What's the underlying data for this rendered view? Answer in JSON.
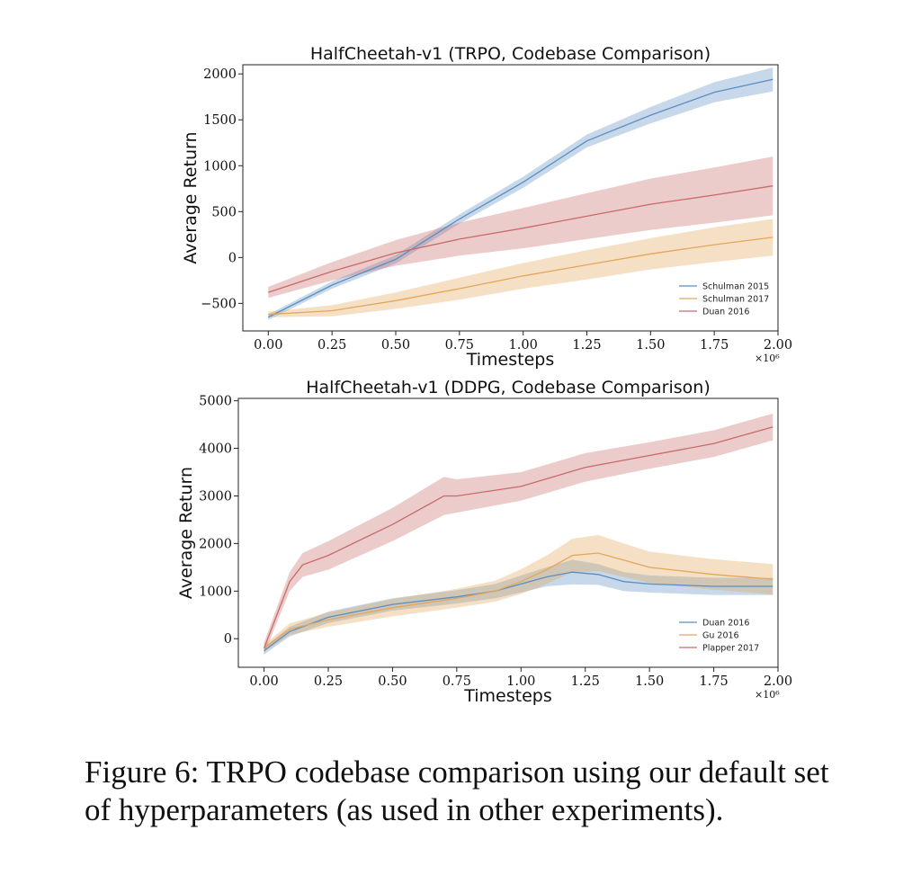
{
  "colors": {
    "blue": "#5b8ec0",
    "orange": "#e3a65a",
    "red": "#c96a6a"
  },
  "caption": {
    "line1": "Figure 6: TRPO codebase comparison using our default set",
    "line2": "of hyperparameters (as used in other experiments)."
  },
  "chart_data": [
    {
      "type": "line",
      "title": "HalfCheetah-v1 (TRPO, Codebase Comparison)",
      "xlabel": "Timesteps",
      "ylabel": "Average Return",
      "x_multiplier": "×10⁶",
      "xlim": [
        -0.1,
        2.0
      ],
      "ylim": [
        -800,
        2100
      ],
      "xticks": [
        "0.00",
        "0.25",
        "0.50",
        "0.75",
        "1.00",
        "1.25",
        "1.50",
        "1.75",
        "2.00"
      ],
      "yticks": [
        "−500",
        "0",
        "500",
        "1000",
        "1500",
        "2000"
      ],
      "legend_position": "lower-right",
      "series": [
        {
          "name": "Schulman 2015",
          "color": "blue",
          "x": [
            0.0,
            0.25,
            0.5,
            0.75,
            1.0,
            1.25,
            1.5,
            1.75,
            1.98
          ],
          "y": [
            -650,
            -300,
            -20,
            420,
            820,
            1270,
            1550,
            1800,
            1940
          ],
          "band": [
            30,
            40,
            45,
            50,
            60,
            70,
            90,
            110,
            130
          ]
        },
        {
          "name": "Schulman 2017",
          "color": "orange",
          "x": [
            0.0,
            0.25,
            0.5,
            0.75,
            1.0,
            1.25,
            1.5,
            1.75,
            1.98
          ],
          "y": [
            -620,
            -580,
            -470,
            -340,
            -200,
            -80,
            40,
            140,
            220
          ],
          "band": [
            30,
            60,
            90,
            120,
            140,
            160,
            170,
            190,
            200
          ]
        },
        {
          "name": "Duan 2016",
          "color": "red",
          "x": [
            0.0,
            0.25,
            0.5,
            0.75,
            1.0,
            1.25,
            1.5,
            1.75,
            1.98
          ],
          "y": [
            -380,
            -150,
            50,
            200,
            320,
            450,
            580,
            680,
            780
          ],
          "band": [
            60,
            100,
            140,
            180,
            220,
            250,
            280,
            300,
            320
          ]
        }
      ]
    },
    {
      "type": "line",
      "title": "HalfCheetah-v1 (DDPG, Codebase Comparison)",
      "xlabel": "Timesteps",
      "ylabel": "Average Return",
      "x_multiplier": "×10⁶",
      "xlim": [
        -0.1,
        2.0
      ],
      "ylim": [
        -600,
        5050
      ],
      "xticks": [
        "0.00",
        "0.25",
        "0.50",
        "0.75",
        "1.00",
        "1.25",
        "1.50",
        "1.75",
        "2.00"
      ],
      "yticks": [
        "0",
        "1000",
        "2000",
        "3000",
        "4000",
        "5000"
      ],
      "legend_position": "lower-right",
      "series": [
        {
          "name": "Duan 2016",
          "color": "blue",
          "x": [
            0.0,
            0.1,
            0.25,
            0.5,
            0.75,
            0.9,
            1.0,
            1.1,
            1.2,
            1.3,
            1.4,
            1.5,
            1.75,
            1.98
          ],
          "y": [
            -250,
            150,
            450,
            720,
            880,
            1000,
            1150,
            1300,
            1400,
            1350,
            1200,
            1150,
            1100,
            1100
          ],
          "band": [
            80,
            100,
            120,
            130,
            140,
            150,
            180,
            200,
            260,
            220,
            200,
            180,
            180,
            180
          ]
        },
        {
          "name": "Gu 2016",
          "color": "orange",
          "x": [
            0.0,
            0.1,
            0.25,
            0.5,
            0.75,
            0.9,
            1.0,
            1.1,
            1.2,
            1.3,
            1.4,
            1.5,
            1.75,
            1.98
          ],
          "y": [
            -200,
            200,
            400,
            650,
            850,
            1000,
            1200,
            1450,
            1750,
            1800,
            1650,
            1500,
            1350,
            1250
          ],
          "band": [
            80,
            120,
            150,
            180,
            200,
            220,
            260,
            300,
            350,
            380,
            350,
            330,
            320,
            320
          ]
        },
        {
          "name": "Plapper 2017",
          "color": "red",
          "x": [
            0.0,
            0.1,
            0.15,
            0.25,
            0.5,
            0.7,
            0.75,
            1.0,
            1.25,
            1.5,
            1.75,
            1.98
          ],
          "y": [
            -200,
            1200,
            1550,
            1750,
            2400,
            3000,
            3000,
            3200,
            3600,
            3850,
            4100,
            4450
          ],
          "band": [
            120,
            200,
            250,
            300,
            350,
            400,
            350,
            300,
            300,
            280,
            280,
            280
          ]
        }
      ]
    }
  ]
}
